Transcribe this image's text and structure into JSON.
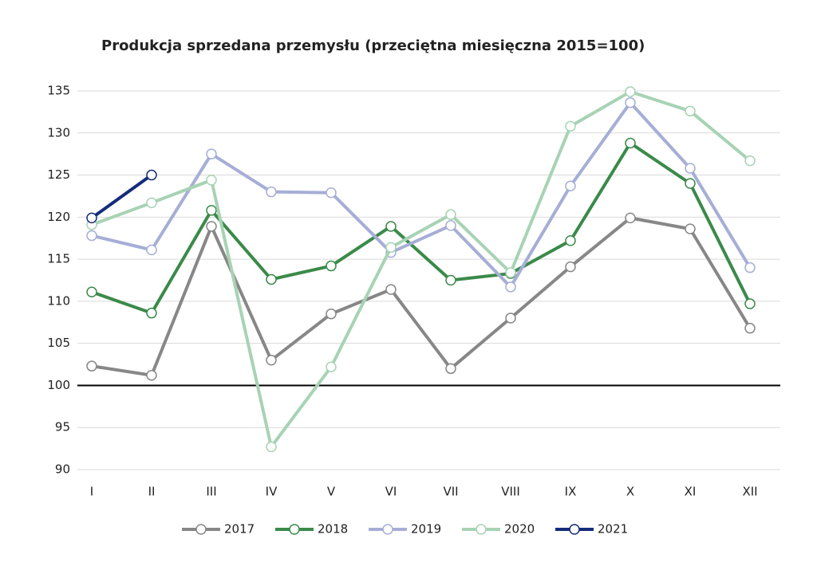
{
  "chart_data": {
    "type": "line",
    "title": "Produkcja sprzedana przemysłu (przeciętna miesięczna 2015=100)",
    "categories": [
      "I",
      "II",
      "III",
      "IV",
      "V",
      "VI",
      "VII",
      "VIII",
      "IX",
      "X",
      "XI",
      "XII"
    ],
    "series": [
      {
        "name": "2017",
        "color": "#878787",
        "values": [
          102.3,
          101.2,
          118.9,
          103.0,
          108.5,
          111.4,
          102.0,
          108.0,
          114.1,
          119.9,
          118.6,
          106.8
        ]
      },
      {
        "name": "2018",
        "color": "#3a8a4a",
        "values": [
          111.1,
          108.6,
          120.8,
          112.6,
          114.2,
          118.9,
          112.5,
          113.3,
          117.2,
          128.8,
          124.0,
          109.7
        ]
      },
      {
        "name": "2019",
        "color": "#a6aed6",
        "values": [
          117.8,
          116.1,
          127.5,
          123.0,
          122.9,
          115.8,
          119.0,
          111.7,
          123.7,
          133.6,
          125.8,
          114.0
        ]
      },
      {
        "name": "2020",
        "color": "#a7d3b4",
        "values": [
          119.1,
          121.7,
          124.4,
          92.7,
          102.2,
          116.4,
          120.3,
          113.4,
          130.8,
          134.9,
          132.6,
          126.7
        ]
      },
      {
        "name": "2021",
        "color": "#142c7a",
        "values": [
          119.9,
          125.0,
          null,
          null,
          null,
          null,
          null,
          null,
          null,
          null,
          null,
          null
        ]
      }
    ],
    "ylim": [
      90,
      135
    ],
    "yticks": [
      90,
      95,
      100,
      105,
      110,
      115,
      120,
      125,
      130,
      135
    ],
    "grid": true,
    "baseline": 100,
    "legend": "bottom"
  }
}
